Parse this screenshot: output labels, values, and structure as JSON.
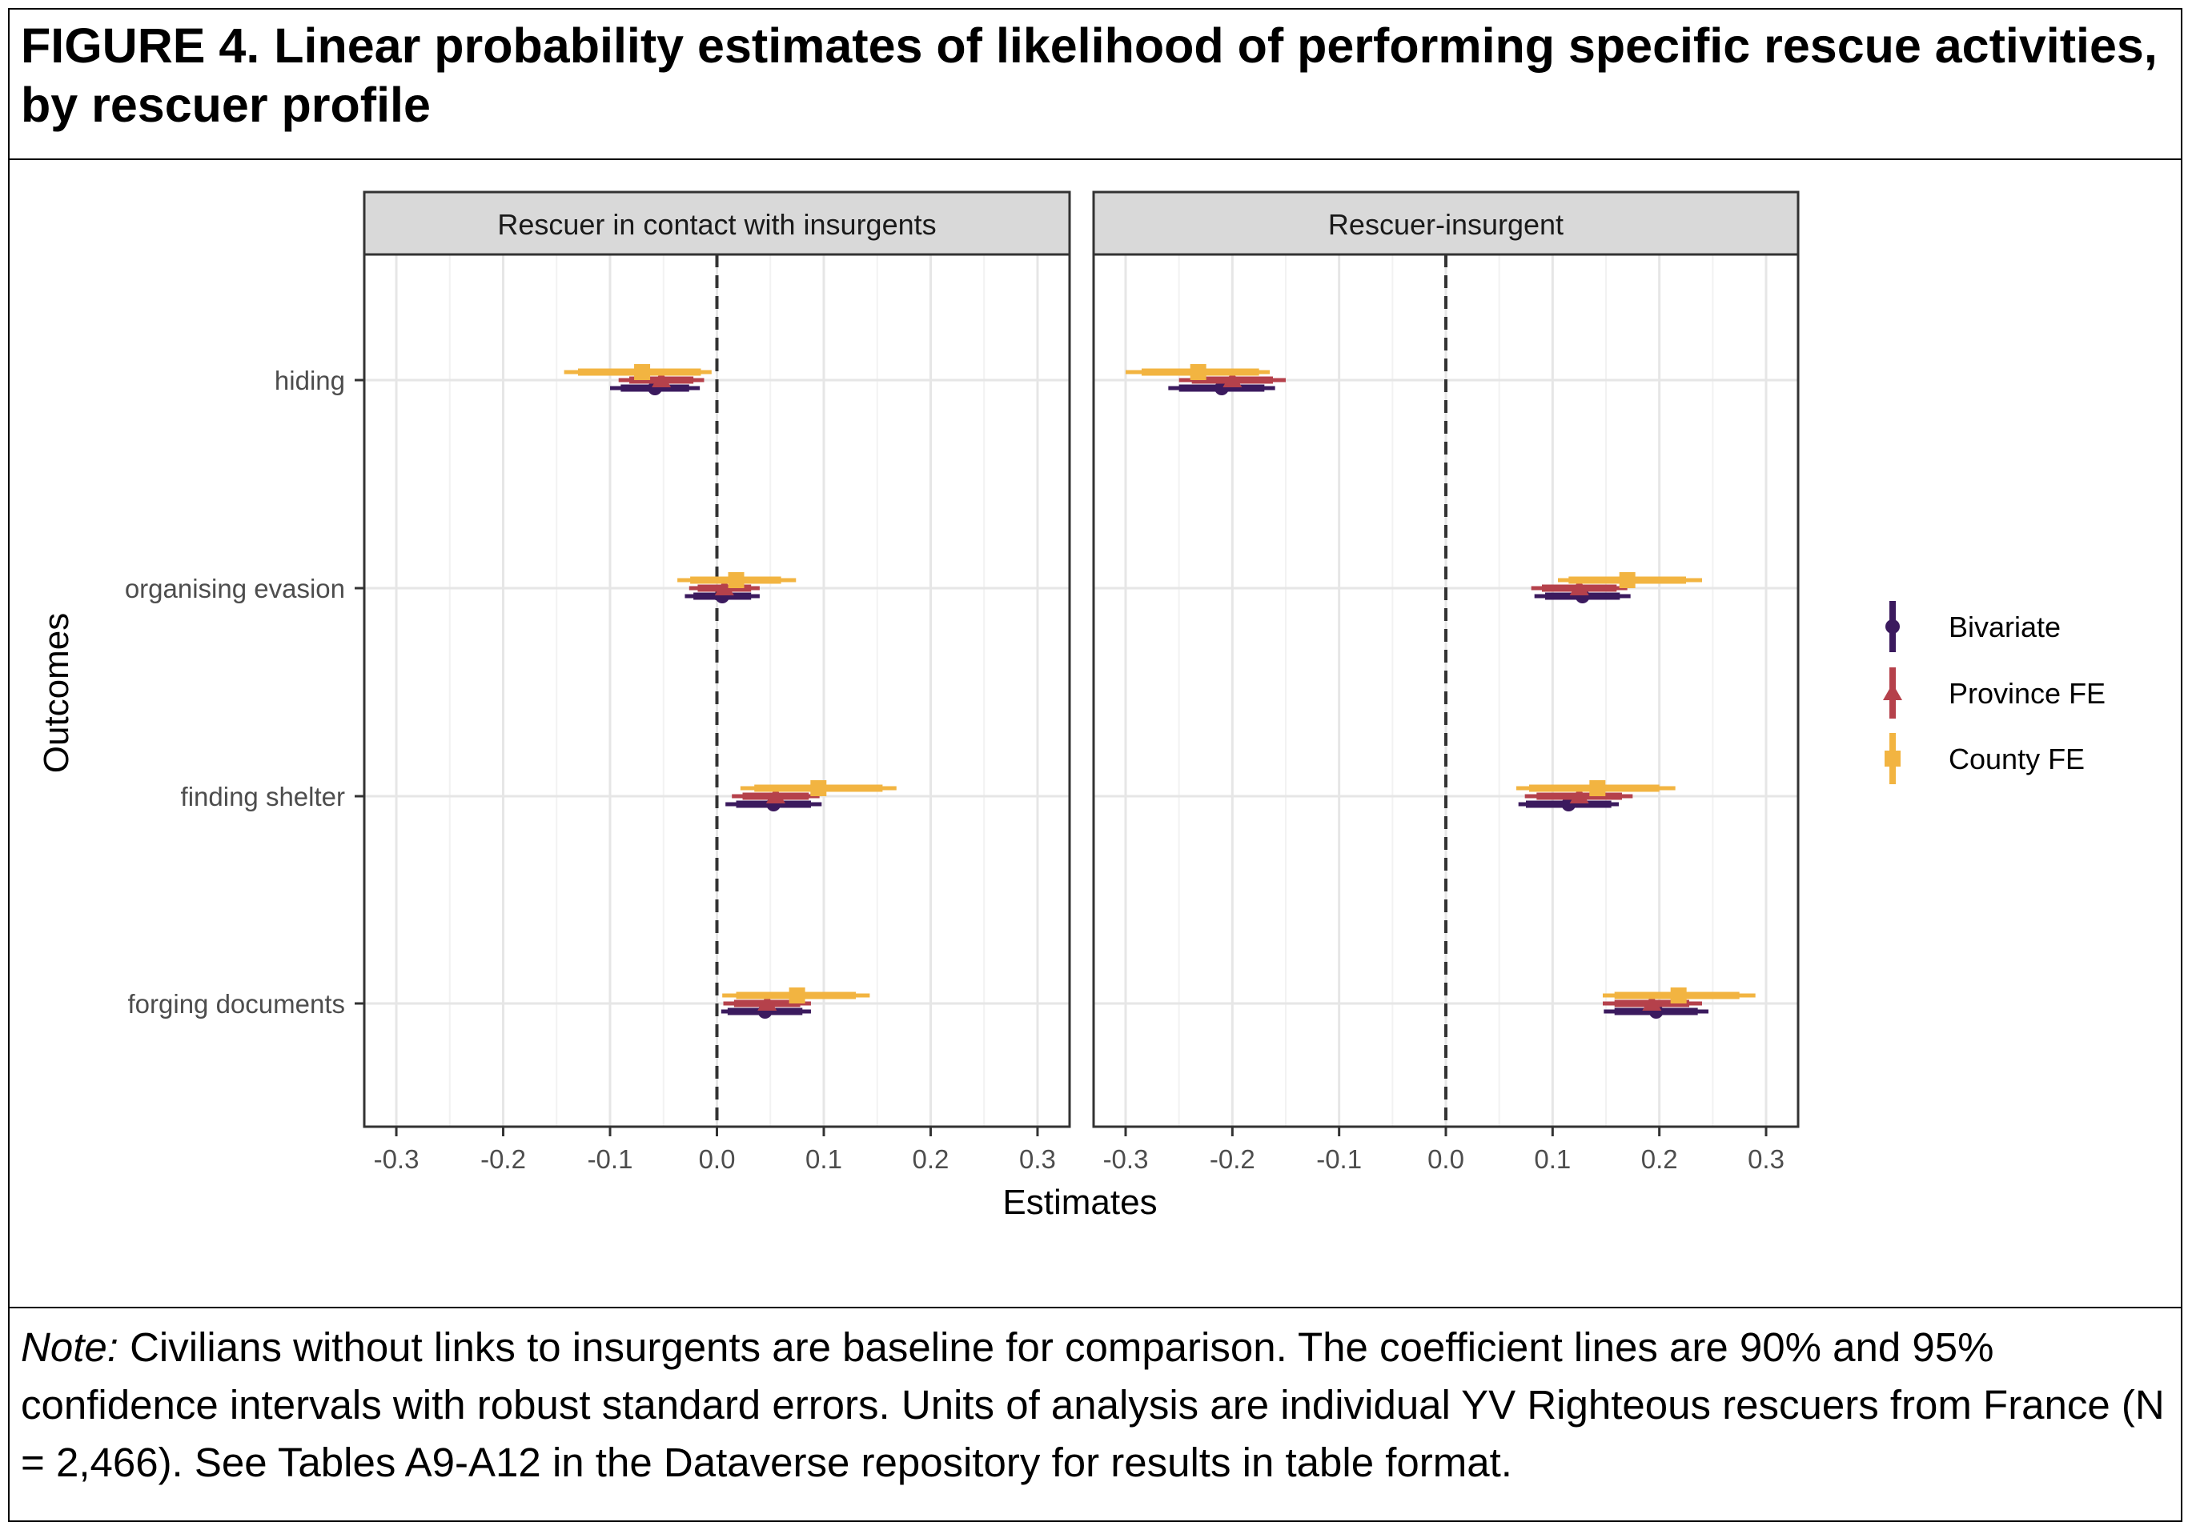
{
  "figure": {
    "label": "FIGURE 4.",
    "title": "Linear probability estimates of likelihood of performing specific rescue activities, by rescuer profile"
  },
  "note": {
    "label": "Note:",
    "text": "Civilians without links to insurgents are baseline for comparison. The coefficient lines are 90% and 95% confidence intervals with robust standard errors. Units of analysis are individual YV Righteous rescuers from France (N = 2,466). See Tables A9-A12 in the Dataverse repository for results in table format."
  },
  "chart_data": {
    "type": "coefficient-plot",
    "xlabel": "Estimates",
    "ylabel": "Outcomes",
    "xlim": [
      -0.33,
      0.33
    ],
    "xticks": [
      -0.3,
      -0.2,
      -0.1,
      0.0,
      0.1,
      0.2,
      0.3
    ],
    "xtick_labels": [
      "-0.3",
      "-0.2",
      "-0.1",
      "0.0",
      "0.1",
      "0.2",
      "0.3"
    ],
    "reference_line": 0,
    "grid": true,
    "legend_position": "right",
    "categories": [
      "hiding",
      "organising evasion",
      "finding shelter",
      "forging documents"
    ],
    "panels": [
      {
        "title": "Rescuer in contact with insurgents",
        "series": [
          {
            "name": "Bivariate",
            "color": "#3b1a5e",
            "marker": "circle",
            "estimates": [
              -0.058,
              0.005,
              0.053,
              0.045
            ],
            "ci90": [
              [
                -0.09,
                -0.026
              ],
              [
                -0.022,
                0.032
              ],
              [
                0.018,
                0.088
              ],
              [
                0.01,
                0.08
              ]
            ],
            "ci95": [
              [
                -0.1,
                -0.016
              ],
              [
                -0.03,
                0.04
              ],
              [
                0.008,
                0.098
              ],
              [
                0.004,
                0.088
              ]
            ]
          },
          {
            "name": "Province FE",
            "color": "#b5414b",
            "marker": "triangle",
            "estimates": [
              -0.052,
              0.007,
              0.055,
              0.047
            ],
            "ci90": [
              [
                -0.082,
                -0.022
              ],
              [
                -0.018,
                0.032
              ],
              [
                0.024,
                0.086
              ],
              [
                0.016,
                0.078
              ]
            ],
            "ci95": [
              [
                -0.092,
                -0.012
              ],
              [
                -0.026,
                0.04
              ],
              [
                0.014,
                0.096
              ],
              [
                0.006,
                0.088
              ]
            ]
          },
          {
            "name": "County FE",
            "color": "#f2b441",
            "marker": "square",
            "estimates": [
              -0.07,
              0.018,
              0.095,
              0.075
            ],
            "ci90": [
              [
                -0.13,
                -0.015
              ],
              [
                -0.025,
                0.06
              ],
              [
                0.035,
                0.155
              ],
              [
                0.018,
                0.13
              ]
            ],
            "ci95": [
              [
                -0.143,
                -0.005
              ],
              [
                -0.037,
                0.074
              ],
              [
                0.022,
                0.168
              ],
              [
                0.005,
                0.143
              ]
            ]
          }
        ]
      },
      {
        "title": "Rescuer-insurgent",
        "series": [
          {
            "name": "Bivariate",
            "color": "#3b1a5e",
            "marker": "circle",
            "estimates": [
              -0.21,
              0.128,
              0.115,
              0.197
            ],
            "ci90": [
              [
                -0.25,
                -0.17
              ],
              [
                0.093,
                0.163
              ],
              [
                0.075,
                0.155
              ],
              [
                0.158,
                0.236
              ]
            ],
            "ci95": [
              [
                -0.26,
                -0.16
              ],
              [
                0.083,
                0.173
              ],
              [
                0.068,
                0.162
              ],
              [
                0.148,
                0.246
              ]
            ]
          },
          {
            "name": "Province FE",
            "color": "#b5414b",
            "marker": "triangle",
            "estimates": [
              -0.2,
              0.125,
              0.125,
              0.193
            ],
            "ci90": [
              [
                -0.238,
                -0.162
              ],
              [
                0.09,
                0.16
              ],
              [
                0.085,
                0.165
              ],
              [
                0.158,
                0.228
              ]
            ],
            "ci95": [
              [
                -0.25,
                -0.15
              ],
              [
                0.08,
                0.17
              ],
              [
                0.074,
                0.175
              ],
              [
                0.147,
                0.24
              ]
            ]
          },
          {
            "name": "County FE",
            "color": "#f2b441",
            "marker": "square",
            "estimates": [
              -0.232,
              0.17,
              0.142,
              0.218
            ],
            "ci90": [
              [
                -0.285,
                -0.175
              ],
              [
                0.115,
                0.225
              ],
              [
                0.078,
                0.2
              ],
              [
                0.158,
                0.275
              ]
            ],
            "ci95": [
              [
                -0.3,
                -0.165
              ],
              [
                0.105,
                0.24
              ],
              [
                0.066,
                0.215
              ],
              [
                0.147,
                0.29
              ]
            ]
          }
        ]
      }
    ]
  }
}
